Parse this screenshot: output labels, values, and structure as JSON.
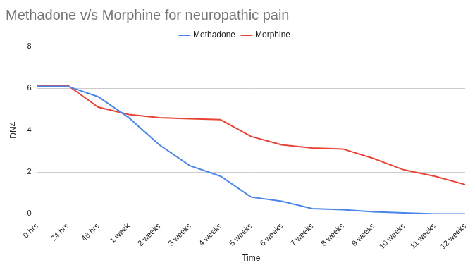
{
  "chart_data": {
    "type": "line",
    "title": "Methadone v/s Morphine for neuropathic pain",
    "x_label": "Time",
    "y_label": "DN4",
    "categories": [
      "0 hrs",
      "24 hrs",
      "48 hrs",
      "1 week",
      "2 weeks",
      "3 weeks",
      "4 weeks",
      "5 weeks",
      "6 weeks",
      "7 weeks",
      "8 weeks",
      "9 weeks",
      "10 weeks",
      "11 weeks",
      "12 weeks"
    ],
    "series": [
      {
        "name": "Methadone",
        "color": "#4a86e8",
        "values": [
          6.1,
          6.1,
          5.6,
          4.6,
          3.3,
          2.3,
          1.8,
          0.8,
          0.6,
          0.25,
          0.2,
          0.1,
          0.05,
          0,
          0
        ]
      },
      {
        "name": "Morphine",
        "color": "#ea4335",
        "values": [
          6.15,
          6.15,
          5.1,
          4.75,
          4.6,
          4.55,
          4.5,
          3.7,
          3.3,
          3.15,
          3.1,
          2.65,
          2.1,
          1.8,
          1.4
        ]
      }
    ],
    "ylim": [
      0,
      8
    ],
    "yticks": [
      0,
      2,
      4,
      6,
      8
    ],
    "grid": true,
    "legend": "top"
  }
}
